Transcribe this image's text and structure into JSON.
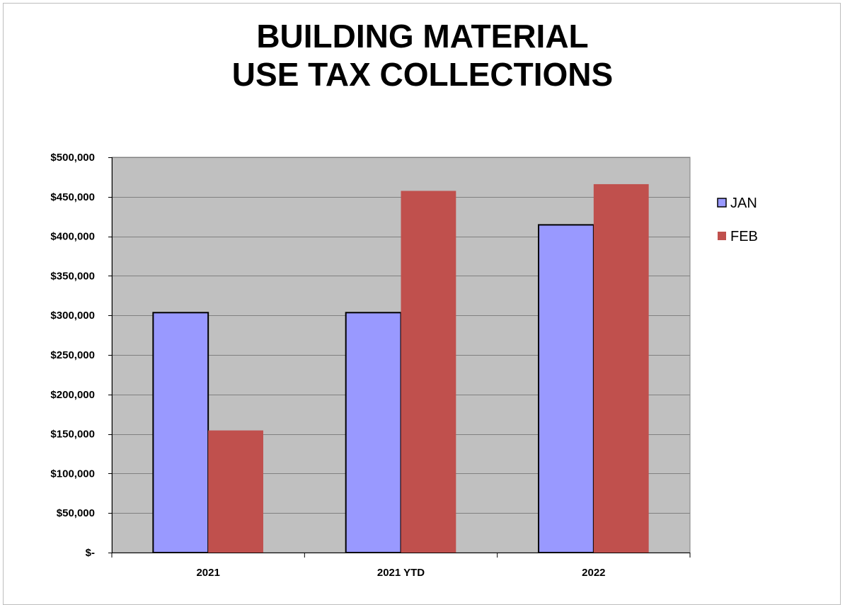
{
  "chart_data": {
    "type": "bar",
    "title": [
      "BUILDING MATERIAL",
      "USE TAX COLLECTIONS"
    ],
    "categories": [
      "2021",
      "2021 YTD",
      "2022"
    ],
    "series": [
      {
        "name": "JAN",
        "values": [
          303500,
          303500,
          414500
        ],
        "color": "#9999ff"
      },
      {
        "name": "FEB",
        "values": [
          154500,
          457500,
          466000
        ],
        "color": "#c0504d"
      }
    ],
    "ylim": [
      0,
      500000
    ],
    "yticks": [
      0,
      50000,
      100000,
      150000,
      200000,
      250000,
      300000,
      350000,
      400000,
      450000,
      500000
    ],
    "ytick_labels": [
      "$-",
      "$50,000",
      "$100,000",
      "$150,000",
      "$200,000",
      "$250,000",
      "$300,000",
      "$350,000",
      "$400,000",
      "$450,000",
      "$500,000"
    ],
    "xlabel": "",
    "ylabel": "",
    "grid": true,
    "plot_background": "#c0c0c0",
    "legend_position": "right"
  }
}
